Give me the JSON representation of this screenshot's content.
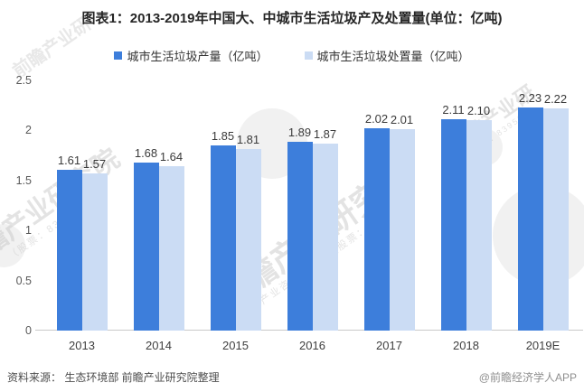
{
  "title": "图表1：2013-2019年中国大、中城市生活垃圾产及处置量(单位：亿吨)",
  "chart_data": {
    "type": "bar",
    "categories": [
      "2013",
      "2014",
      "2015",
      "2016",
      "2017",
      "2018",
      "2019E"
    ],
    "series": [
      {
        "name": "城市生活垃圾产量（亿吨）",
        "color": "#3D7EDB",
        "values": [
          1.61,
          1.68,
          1.85,
          1.89,
          2.02,
          2.11,
          2.23
        ]
      },
      {
        "name": "城市生活垃圾处置量（亿吨）",
        "color": "#CBDCF4",
        "values": [
          1.57,
          1.64,
          1.81,
          1.87,
          2.01,
          2.1,
          2.22
        ]
      }
    ],
    "ylim": [
      0,
      2.5
    ],
    "yticks": [
      0,
      0.5,
      1,
      1.5,
      2,
      2.5
    ],
    "grid": false,
    "legend_position": "top",
    "value_labels": true,
    "value_label_decimals": 2
  },
  "footer": {
    "source": "资料来源：  生态环境部 前瞻产业研究院整理",
    "credit": "@前瞻经济学人APP"
  },
  "watermarks": {
    "brand": "前瞻产业研究院",
    "brand_short": "前瞻产业研",
    "tagline": "中国产业咨询领导者（股票：839599）",
    "stock": "（股票：839599）"
  }
}
